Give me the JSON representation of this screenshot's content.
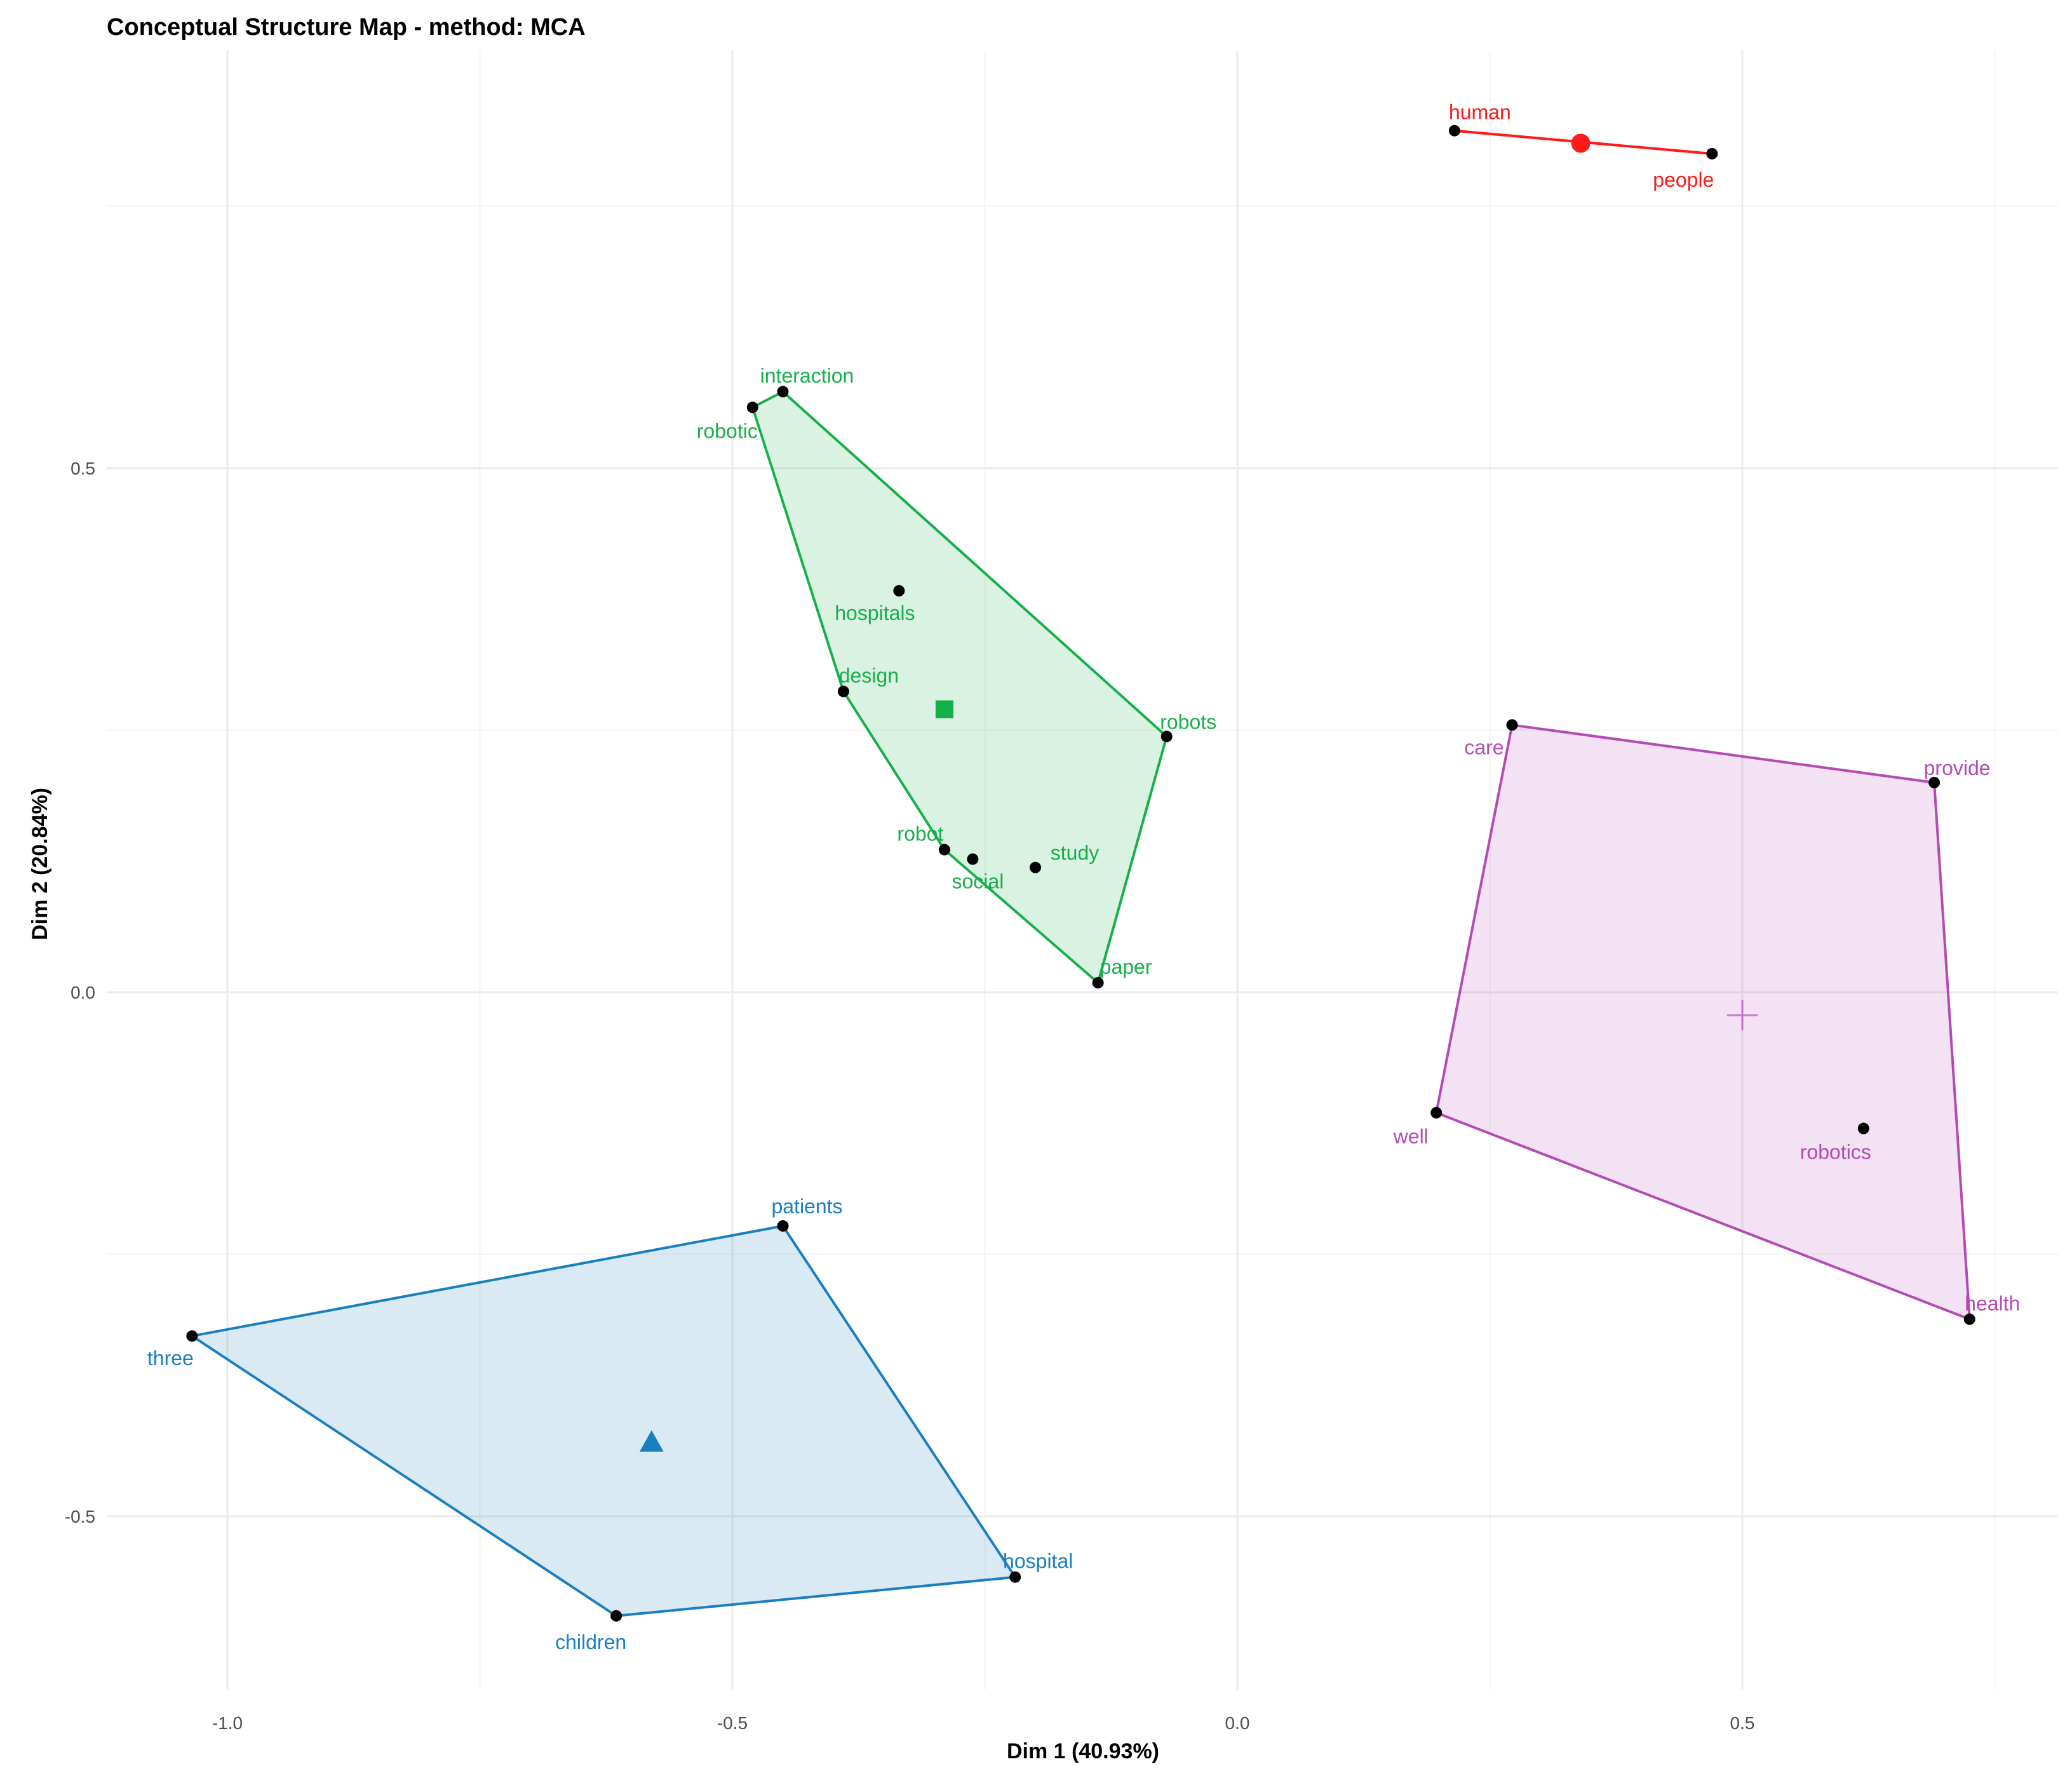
{
  "chart_data": {
    "type": "scatter",
    "title": "Conceptual Structure Map - method: MCA",
    "xlabel": "Dim 1 (40.93%)",
    "ylabel": "Dim 2 (20.84%)",
    "xlim": [
      -1.12,
      0.8
    ],
    "ylim": [
      -0.66,
      0.93
    ],
    "xticks": [
      -1.0,
      -0.5,
      0.0,
      0.5
    ],
    "xtick_labels": [
      "-1.0",
      "-0.5",
      "0.0",
      "0.5"
    ],
    "yticks": [
      -0.5,
      0.0,
      0.5
    ],
    "ytick_labels": [
      "-0.5",
      "0.0",
      "0.5"
    ],
    "grid": true,
    "legend": "none",
    "clusters": [
      {
        "color": "#ff1a1a",
        "centroid_marker": "circle",
        "centroid": [
          0.34,
          0.81
        ],
        "points": [
          {
            "label": "human",
            "x": 0.215,
            "y": 0.822
          },
          {
            "label": "people",
            "x": 0.47,
            "y": 0.8
          }
        ],
        "hull": [
          "human",
          "people"
        ]
      },
      {
        "color": "#16b04a",
        "centroid_marker": "square",
        "centroid": [
          -0.29,
          0.27
        ],
        "points": [
          {
            "label": "interaction",
            "x": -0.45,
            "y": 0.573
          },
          {
            "label": "robotic",
            "x": -0.48,
            "y": 0.558
          },
          {
            "label": "hospitals",
            "x": -0.335,
            "y": 0.383
          },
          {
            "label": "design",
            "x": -0.39,
            "y": 0.287
          },
          {
            "label": "robots",
            "x": -0.07,
            "y": 0.244
          },
          {
            "label": "robot",
            "x": -0.29,
            "y": 0.136
          },
          {
            "label": "social",
            "x": -0.262,
            "y": 0.127
          },
          {
            "label": "study",
            "x": -0.2,
            "y": 0.119
          },
          {
            "label": "paper",
            "x": -0.138,
            "y": 0.009
          }
        ],
        "hull": [
          "interaction",
          "robots",
          "paper",
          "robot",
          "design",
          "robotic"
        ]
      },
      {
        "color": "#b44bb5",
        "centroid_marker": "cross",
        "centroid": [
          0.5,
          -0.022
        ],
        "points": [
          {
            "label": "care",
            "x": 0.272,
            "y": 0.255
          },
          {
            "label": "provide",
            "x": 0.69,
            "y": 0.2
          },
          {
            "label": "well",
            "x": 0.197,
            "y": -0.115
          },
          {
            "label": "robotics",
            "x": 0.62,
            "y": -0.13
          },
          {
            "label": "health",
            "x": 0.725,
            "y": -0.312
          }
        ],
        "hull": [
          "care",
          "provide",
          "health",
          "well"
        ]
      },
      {
        "color": "#1a7fc1",
        "centroid_marker": "triangle",
        "centroid": [
          -0.58,
          -0.43
        ],
        "points": [
          {
            "label": "patients",
            "x": -0.45,
            "y": -0.223
          },
          {
            "label": "three",
            "x": -1.035,
            "y": -0.328
          },
          {
            "label": "hospital",
            "x": -0.22,
            "y": -0.558
          },
          {
            "label": "children",
            "x": -0.615,
            "y": -0.595
          }
        ],
        "hull": [
          "patients",
          "hospital",
          "children",
          "three"
        ]
      }
    ]
  }
}
